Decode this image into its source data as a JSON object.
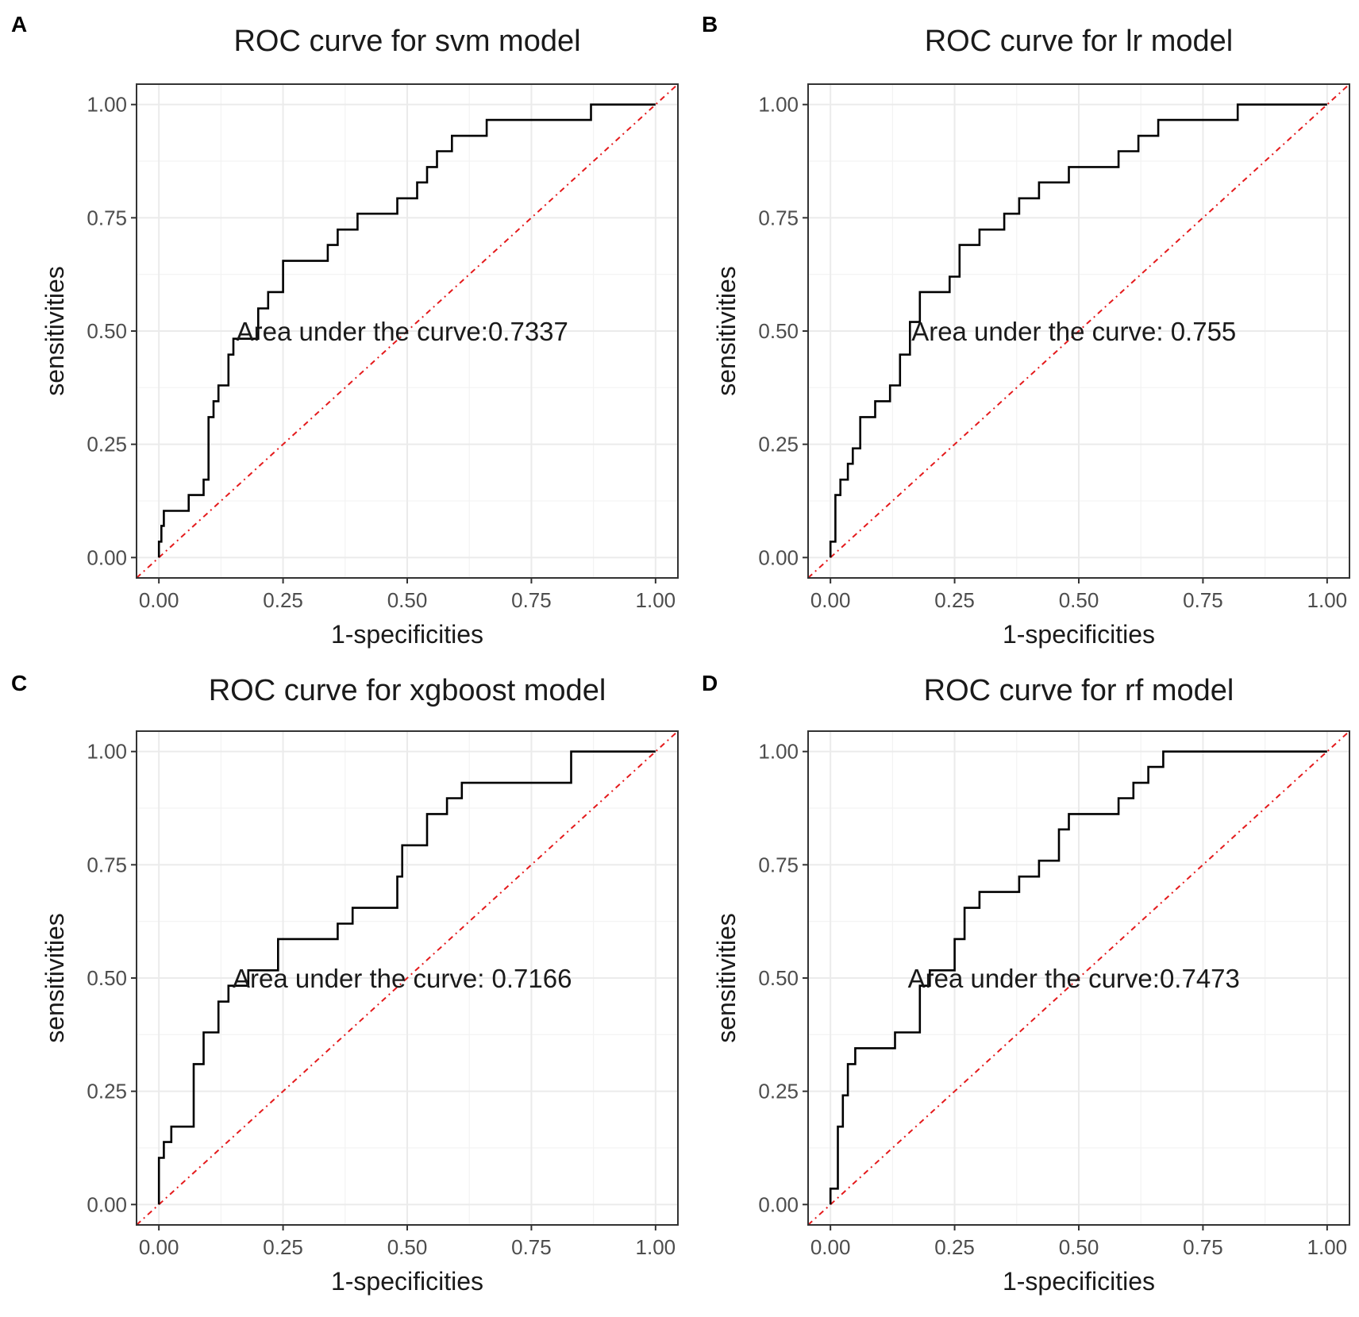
{
  "chart_data": [
    {
      "type": "line",
      "panel_label": "A",
      "title": "ROC curve for svm model",
      "xlabel": "1-specificities",
      "ylabel": "sensitivities",
      "xlim": [
        0,
        1
      ],
      "ylim": [
        0,
        1
      ],
      "xticks": [
        "0.00",
        "0.25",
        "0.50",
        "0.75",
        "1.00"
      ],
      "yticks": [
        "0.00",
        "0.25",
        "0.50",
        "0.75",
        "1.00"
      ],
      "grid": true,
      "annotation": "Area under the curve:0.7337",
      "annotation_anchor": [
        0.49,
        0.5
      ],
      "reference_line": {
        "from": [
          0,
          0
        ],
        "to": [
          1,
          1
        ],
        "color": "#e41a1c",
        "style": "dot-dash"
      },
      "series": [
        {
          "name": "ROC",
          "x": [
            0,
            0,
            0.005,
            0.005,
            0.01,
            0.01,
            0.06,
            0.06,
            0.09,
            0.09,
            0.1,
            0.1,
            0.11,
            0.11,
            0.12,
            0.12,
            0.14,
            0.14,
            0.15,
            0.15,
            0.2,
            0.2,
            0.22,
            0.22,
            0.25,
            0.25,
            0.34,
            0.34,
            0.36,
            0.36,
            0.4,
            0.4,
            0.48,
            0.48,
            0.52,
            0.52,
            0.54,
            0.54,
            0.56,
            0.56,
            0.59,
            0.59,
            0.61,
            0.61,
            0.66,
            0.66,
            0.87,
            0.87,
            1.0
          ],
          "y": [
            0,
            0.035,
            0.035,
            0.07,
            0.07,
            0.103,
            0.103,
            0.138,
            0.138,
            0.172,
            0.172,
            0.31,
            0.31,
            0.345,
            0.345,
            0.38,
            0.38,
            0.448,
            0.448,
            0.483,
            0.483,
            0.55,
            0.55,
            0.586,
            0.586,
            0.655,
            0.655,
            0.69,
            0.69,
            0.724,
            0.724,
            0.759,
            0.759,
            0.793,
            0.793,
            0.828,
            0.828,
            0.862,
            0.862,
            0.897,
            0.897,
            0.931,
            0.931,
            0.931,
            0.931,
            0.966,
            0.966,
            1.0,
            1.0
          ]
        }
      ]
    },
    {
      "type": "line",
      "panel_label": "B",
      "title": "ROC curve for lr model",
      "xlabel": "1-specificities",
      "ylabel": "sensitivities",
      "xlim": [
        0,
        1
      ],
      "ylim": [
        0,
        1
      ],
      "xticks": [
        "0.00",
        "0.25",
        "0.50",
        "0.75",
        "1.00"
      ],
      "yticks": [
        "0.00",
        "0.25",
        "0.50",
        "0.75",
        "1.00"
      ],
      "grid": true,
      "annotation": "Area under the curve: 0.755",
      "annotation_anchor": [
        0.49,
        0.5
      ],
      "reference_line": {
        "from": [
          0,
          0
        ],
        "to": [
          1,
          1
        ],
        "color": "#e41a1c",
        "style": "dot-dash"
      },
      "series": [
        {
          "name": "ROC",
          "x": [
            0,
            0,
            0.01,
            0.01,
            0.02,
            0.02,
            0.035,
            0.035,
            0.045,
            0.045,
            0.06,
            0.06,
            0.07,
            0.07,
            0.09,
            0.09,
            0.12,
            0.12,
            0.14,
            0.14,
            0.16,
            0.16,
            0.18,
            0.18,
            0.24,
            0.24,
            0.26,
            0.26,
            0.3,
            0.3,
            0.35,
            0.35,
            0.38,
            0.38,
            0.42,
            0.42,
            0.48,
            0.48,
            0.58,
            0.58,
            0.62,
            0.62,
            0.66,
            0.66,
            0.82,
            0.82,
            1.0
          ],
          "y": [
            0,
            0.035,
            0.035,
            0.138,
            0.138,
            0.172,
            0.172,
            0.207,
            0.207,
            0.241,
            0.241,
            0.31,
            0.31,
            0.31,
            0.31,
            0.345,
            0.345,
            0.38,
            0.38,
            0.448,
            0.448,
            0.52,
            0.52,
            0.586,
            0.586,
            0.62,
            0.62,
            0.69,
            0.69,
            0.724,
            0.724,
            0.759,
            0.759,
            0.793,
            0.793,
            0.828,
            0.828,
            0.862,
            0.862,
            0.897,
            0.897,
            0.931,
            0.931,
            0.966,
            0.966,
            1.0,
            1.0
          ]
        }
      ]
    },
    {
      "type": "line",
      "panel_label": "C",
      "title": "ROC curve for xgboost model",
      "xlabel": "1-specificities",
      "ylabel": "sensitivities",
      "xlim": [
        0,
        1
      ],
      "ylim": [
        0,
        1
      ],
      "xticks": [
        "0.00",
        "0.25",
        "0.50",
        "0.75",
        "1.00"
      ],
      "yticks": [
        "0.00",
        "0.25",
        "0.50",
        "0.75",
        "1.00"
      ],
      "grid": true,
      "annotation": "Area under the curve: 0.7166",
      "annotation_anchor": [
        0.49,
        0.5
      ],
      "reference_line": {
        "from": [
          0,
          0
        ],
        "to": [
          1,
          1
        ],
        "color": "#e41a1c",
        "style": "dot-dash"
      },
      "series": [
        {
          "name": "ROC",
          "x": [
            0,
            0,
            0.01,
            0.01,
            0.025,
            0.025,
            0.04,
            0.04,
            0.07,
            0.07,
            0.09,
            0.09,
            0.12,
            0.12,
            0.14,
            0.14,
            0.18,
            0.18,
            0.24,
            0.24,
            0.36,
            0.36,
            0.39,
            0.39,
            0.48,
            0.48,
            0.49,
            0.49,
            0.54,
            0.54,
            0.58,
            0.58,
            0.61,
            0.61,
            0.83,
            0.83,
            1.0
          ],
          "y": [
            0,
            0.103,
            0.103,
            0.138,
            0.138,
            0.172,
            0.172,
            0.172,
            0.172,
            0.31,
            0.31,
            0.38,
            0.38,
            0.448,
            0.448,
            0.483,
            0.483,
            0.517,
            0.517,
            0.586,
            0.586,
            0.62,
            0.62,
            0.655,
            0.655,
            0.724,
            0.724,
            0.793,
            0.793,
            0.862,
            0.862,
            0.897,
            0.897,
            0.931,
            0.931,
            1.0,
            1.0
          ]
        }
      ]
    },
    {
      "type": "line",
      "panel_label": "D",
      "title": "ROC curve for rf model",
      "xlabel": "1-specificities",
      "ylabel": "sensitivities",
      "xlim": [
        0,
        1
      ],
      "ylim": [
        0,
        1
      ],
      "xticks": [
        "0.00",
        "0.25",
        "0.50",
        "0.75",
        "1.00"
      ],
      "yticks": [
        "0.00",
        "0.25",
        "0.50",
        "0.75",
        "1.00"
      ],
      "grid": true,
      "annotation": "Area under the curve:0.7473",
      "annotation_anchor": [
        0.49,
        0.5
      ],
      "reference_line": {
        "from": [
          0,
          0
        ],
        "to": [
          1,
          1
        ],
        "color": "#e41a1c",
        "style": "dot-dash"
      },
      "series": [
        {
          "name": "ROC",
          "x": [
            0,
            0,
            0.015,
            0.015,
            0.025,
            0.025,
            0.035,
            0.035,
            0.05,
            0.05,
            0.07,
            0.07,
            0.13,
            0.13,
            0.18,
            0.18,
            0.2,
            0.2,
            0.25,
            0.25,
            0.27,
            0.27,
            0.3,
            0.3,
            0.38,
            0.38,
            0.42,
            0.42,
            0.46,
            0.46,
            0.48,
            0.48,
            0.58,
            0.58,
            0.61,
            0.61,
            0.64,
            0.64,
            0.67,
            0.67,
            1.0
          ],
          "y": [
            0,
            0.035,
            0.035,
            0.172,
            0.172,
            0.241,
            0.241,
            0.31,
            0.31,
            0.345,
            0.345,
            0.345,
            0.345,
            0.38,
            0.38,
            0.483,
            0.483,
            0.517,
            0.517,
            0.586,
            0.586,
            0.655,
            0.655,
            0.69,
            0.69,
            0.724,
            0.724,
            0.759,
            0.759,
            0.828,
            0.828,
            0.862,
            0.862,
            0.897,
            0.897,
            0.931,
            0.931,
            0.966,
            0.966,
            1.0,
            1.0
          ]
        }
      ]
    }
  ]
}
